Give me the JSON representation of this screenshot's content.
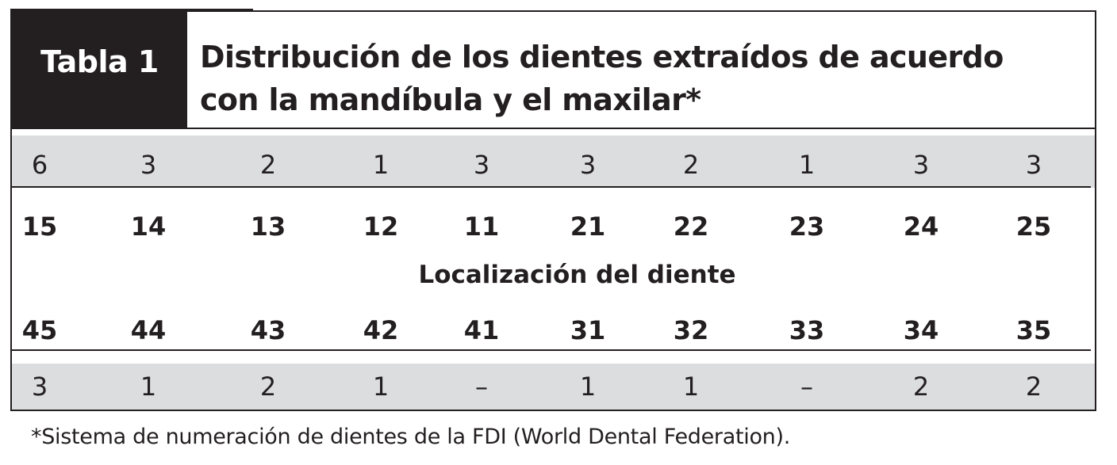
{
  "table": {
    "label": "Tabla 1",
    "title_line1": "Distribución de los dientes extraídos de acuerdo",
    "title_line2": "con la mandíbula y el maxilar*",
    "upper_counts": [
      "6",
      "3",
      "2",
      "1",
      "3",
      "3",
      "2",
      "1",
      "3",
      "3"
    ],
    "upper_teeth": [
      "15",
      "14",
      "13",
      "12",
      "11",
      "21",
      "22",
      "23",
      "24",
      "25"
    ],
    "location_label": "Localización del diente",
    "lower_teeth": [
      "45",
      "44",
      "43",
      "42",
      "41",
      "31",
      "32",
      "33",
      "34",
      "35"
    ],
    "lower_counts": [
      "3",
      "1",
      "2",
      "1",
      "–",
      "1",
      "1",
      "–",
      "2",
      "2"
    ]
  },
  "footnote": "*Sistema de numeración de dientes de la FDI (World Dental Federation).",
  "colors": {
    "ink": "#231f20",
    "band_gray": "#dcdddf",
    "background": "#ffffff"
  }
}
